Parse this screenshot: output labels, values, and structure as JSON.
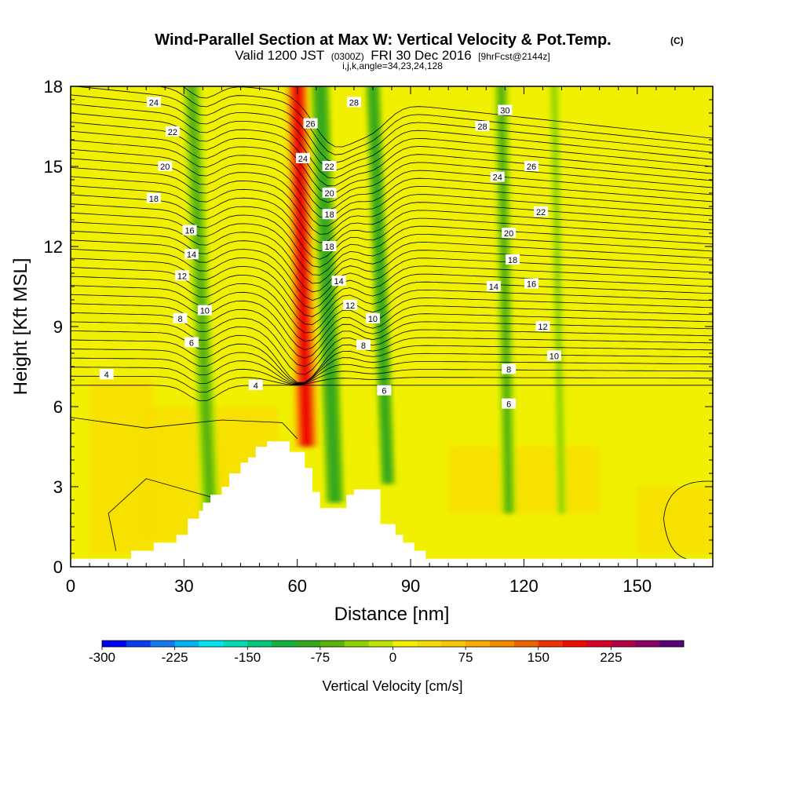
{
  "title": {
    "main": "Wind-Parallel Section at Max W: Vertical Velocity & Pot.Temp.",
    "units": "(C)",
    "valid_prefix": "Valid 1200 JST",
    "utc": "(0300Z)",
    "date": "FRI 30 Dec 2016",
    "forecast": "[9hrFcst@2144z]",
    "indices": "i,j,k,angle=34,23,24,128"
  },
  "colors": {
    "velocity_scale": [
      "#0000f0",
      "#0a3cf0",
      "#1478f0",
      "#00b4f0",
      "#00e6f0",
      "#00dcb4",
      "#00c878",
      "#14b43c",
      "#32aa1e",
      "#5ab40a",
      "#8cd200",
      "#bee600",
      "#f0f000",
      "#f5dc00",
      "#fac800",
      "#faaa00",
      "#f58c00",
      "#f06400",
      "#f03200",
      "#f00a00",
      "#dc0028",
      "#b40046",
      "#8c0064",
      "#5a0078"
    ],
    "terrain": "#ffffff",
    "contour": "#000000"
  },
  "chart_data": {
    "type": "heatmap",
    "xlabel": "Distance [nm]",
    "ylabel": "Height [Kft MSL]",
    "xlim": [
      0,
      170
    ],
    "ylim": [
      0,
      18
    ],
    "x_ticks": [
      0,
      30,
      60,
      90,
      120,
      150
    ],
    "y_ticks": [
      0,
      3,
      6,
      9,
      12,
      15,
      18
    ],
    "colorbar": {
      "label": "Vertical Velocity [cm/s]",
      "range": [
        -300,
        300
      ],
      "ticks": [
        -300,
        -225,
        -150,
        -75,
        0,
        75,
        150,
        225
      ]
    },
    "terrain_profile": {
      "x": [
        0,
        16,
        16,
        22,
        22,
        28,
        28,
        31,
        31,
        34,
        34,
        35,
        35,
        37,
        37,
        40,
        40,
        42,
        42,
        45,
        45,
        47,
        47,
        49,
        49,
        52,
        52,
        55,
        55,
        58,
        58,
        62,
        62,
        64,
        64,
        66,
        66,
        70,
        70,
        73,
        73,
        75,
        75,
        82,
        82,
        86,
        86,
        88,
        88,
        91,
        91,
        94,
        94,
        97,
        97,
        100,
        100,
        170
      ],
      "height": [
        0.3,
        0.3,
        0.6,
        0.6,
        0.9,
        0.9,
        1.2,
        1.2,
        1.8,
        1.8,
        2.1,
        2.1,
        2.4,
        2.4,
        2.7,
        2.7,
        3.0,
        3.0,
        3.5,
        3.5,
        3.9,
        3.9,
        4.1,
        4.1,
        4.5,
        4.5,
        4.7,
        4.7,
        4.7,
        4.7,
        4.3,
        4.3,
        3.7,
        3.7,
        2.8,
        2.8,
        2.2,
        2.2,
        2.2,
        2.2,
        2.7,
        2.7,
        2.9,
        2.9,
        1.6,
        1.6,
        1.2,
        1.2,
        0.9,
        0.9,
        0.6,
        0.6,
        0.3,
        0.3,
        0.3,
        0.3,
        0.3,
        0.3
      ]
    },
    "updraft_bands": [
      {
        "x0": 62.5,
        "x1": 60.0,
        "width": 6.5,
        "w": 190
      },
      {
        "x0": 70.0,
        "x1": 66.0,
        "width": 5.0,
        "w": -95
      },
      {
        "x0": 84.0,
        "x1": 80.0,
        "width": 4.0,
        "w": -100
      },
      {
        "x0": 37.0,
        "x1": 32.0,
        "width": 5.0,
        "w": -55
      },
      {
        "x0": 116.0,
        "x1": 114.0,
        "width": 4.0,
        "w": -60
      },
      {
        "x0": 130.0,
        "x1": 128.0,
        "width": 2.5,
        "w": -35
      }
    ],
    "theta_contours": {
      "levels": [
        4,
        6,
        8,
        10,
        12,
        14,
        16,
        18,
        20,
        22,
        24,
        26,
        28,
        30
      ],
      "labels": [
        {
          "text": "24",
          "x": 22,
          "y": 17.4
        },
        {
          "text": "22",
          "x": 27,
          "y": 16.3
        },
        {
          "text": "20",
          "x": 25,
          "y": 15.0
        },
        {
          "text": "18",
          "x": 22,
          "y": 13.8
        },
        {
          "text": "16",
          "x": 31.5,
          "y": 12.6
        },
        {
          "text": "14",
          "x": 32,
          "y": 11.7
        },
        {
          "text": "12",
          "x": 29.5,
          "y": 10.9
        },
        {
          "text": "10",
          "x": 35.5,
          "y": 9.6
        },
        {
          "text": "8",
          "x": 29,
          "y": 9.3
        },
        {
          "text": "6",
          "x": 32,
          "y": 8.4
        },
        {
          "text": "4",
          "x": 9.5,
          "y": 7.2
        },
        {
          "text": "4",
          "x": 49,
          "y": 6.8
        },
        {
          "text": "26",
          "x": 63.5,
          "y": 16.6
        },
        {
          "text": "24",
          "x": 61.5,
          "y": 15.3
        },
        {
          "text": "22",
          "x": 68.5,
          "y": 15.0
        },
        {
          "text": "20",
          "x": 68.5,
          "y": 14.0
        },
        {
          "text": "18",
          "x": 68.5,
          "y": 13.2
        },
        {
          "text": "18",
          "x": 68.5,
          "y": 12.0
        },
        {
          "text": "14",
          "x": 71,
          "y": 10.7
        },
        {
          "text": "12",
          "x": 74,
          "y": 9.8
        },
        {
          "text": "10",
          "x": 80,
          "y": 9.3
        },
        {
          "text": "8",
          "x": 77.5,
          "y": 8.3
        },
        {
          "text": "6",
          "x": 83,
          "y": 6.6
        },
        {
          "text": "28",
          "x": 75,
          "y": 17.4
        },
        {
          "text": "30",
          "x": 115,
          "y": 17.1
        },
        {
          "text": "28",
          "x": 109,
          "y": 16.5
        },
        {
          "text": "26",
          "x": 122,
          "y": 15.0
        },
        {
          "text": "24",
          "x": 113,
          "y": 14.6
        },
        {
          "text": "22",
          "x": 124.5,
          "y": 13.3
        },
        {
          "text": "20",
          "x": 116,
          "y": 12.5
        },
        {
          "text": "18",
          "x": 117,
          "y": 11.5
        },
        {
          "text": "16",
          "x": 122,
          "y": 10.6
        },
        {
          "text": "14",
          "x": 112,
          "y": 10.5
        },
        {
          "text": "12",
          "x": 125,
          "y": 9.0
        },
        {
          "text": "10",
          "x": 128,
          "y": 7.9
        },
        {
          "text": "8",
          "x": 116,
          "y": 7.4
        },
        {
          "text": "6",
          "x": 116,
          "y": 6.1
        }
      ]
    }
  }
}
